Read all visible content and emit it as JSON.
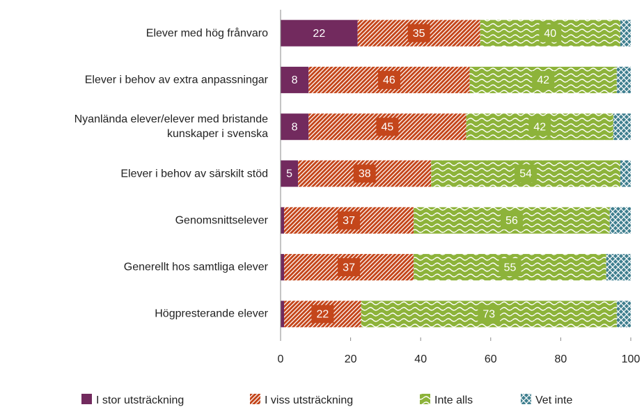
{
  "chart_data": {
    "type": "stacked-barh",
    "categories": [
      "Elever med hög frånvaro",
      "Elever i behov av extra anpassningar",
      "Nyanlända elever/elever med bristande\nkunskaper i svenska",
      "Elever i behov av särskilt stöd",
      "Genomsnittselever",
      "Generellt hos samtliga elever",
      "Högpresterande elever"
    ],
    "series": [
      {
        "name": "I stor utsträckning",
        "color": "#722a5e",
        "pattern": "solid",
        "values": [
          22,
          8,
          8,
          5,
          1,
          1,
          1
        ],
        "value_labels": [
          "22",
          "8",
          "8",
          "5",
          null,
          null,
          null
        ]
      },
      {
        "name": "I viss utsträckning",
        "color": "#c4461b",
        "pattern": "diagonal",
        "values": [
          35,
          46,
          45,
          38,
          37,
          37,
          22
        ],
        "value_labels": [
          "35",
          "46",
          "45",
          "38",
          "37",
          "37",
          "22"
        ]
      },
      {
        "name": "Inte alls",
        "color": "#8db33a",
        "pattern": "wave",
        "values": [
          40,
          42,
          42,
          54,
          56,
          55,
          73
        ],
        "value_labels": [
          "40",
          "42",
          "42",
          "54",
          "56",
          "55",
          "73"
        ]
      },
      {
        "name": "Vet inte",
        "color": "#3f7f8f",
        "pattern": "cross",
        "values": [
          3,
          4,
          5,
          3,
          6,
          7,
          4
        ],
        "value_labels": [
          null,
          null,
          null,
          null,
          null,
          null,
          null
        ]
      }
    ],
    "xlim": [
      0,
      100
    ],
    "xticks": [
      0,
      20,
      40,
      60,
      80,
      100
    ]
  }
}
